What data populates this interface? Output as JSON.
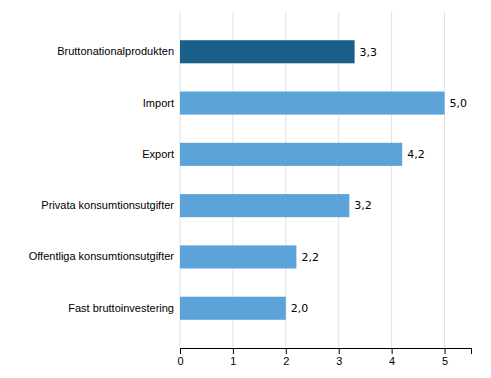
{
  "chart_data": {
    "type": "bar",
    "orientation": "horizontal",
    "categories": [
      "Fast bruttoinvestering",
      "Offentliga konsumtionsutgifter",
      "Privata konsumtionsutgifter",
      "Export",
      "Import",
      "Bruttonationalprodukten"
    ],
    "values": [
      2.0,
      2.2,
      3.2,
      4.2,
      5.0,
      3.3
    ],
    "value_labels": [
      "2,0",
      "2,2",
      "3,2",
      "4,2",
      "5,0",
      "3,3"
    ],
    "colors": [
      "#5ba3d9",
      "#5ba3d9",
      "#5ba3d9",
      "#5ba3d9",
      "#5ba3d9",
      "#1a5f8a"
    ],
    "xlim": [
      0,
      5.5
    ],
    "xticks": [
      0,
      1,
      2,
      3,
      4,
      5
    ],
    "grid": true,
    "data_labels": true
  }
}
